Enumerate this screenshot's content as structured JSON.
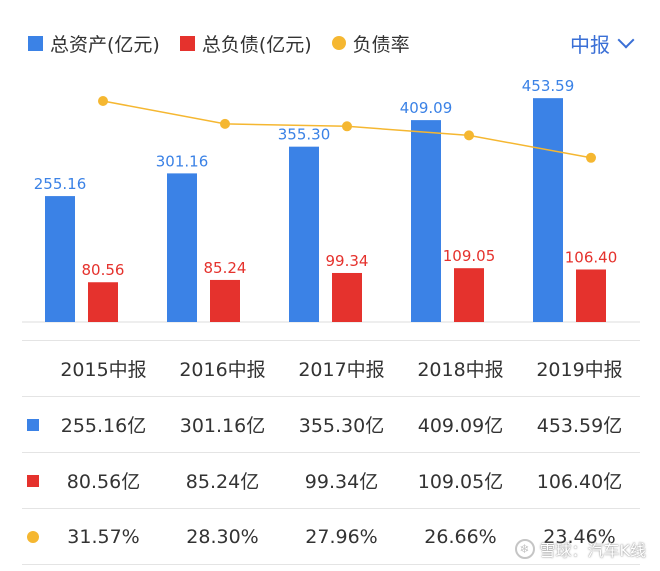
{
  "legend": {
    "assets": "总资产(亿元)",
    "liabilities": "总负债(亿元)",
    "ratio": "负债率"
  },
  "period_selector": {
    "label": "中报"
  },
  "colors": {
    "assets": "#3b82e6",
    "liabilities": "#e5322d",
    "ratio": "#f5b731"
  },
  "chart_data": {
    "type": "bar",
    "categories": [
      "2015中报",
      "2016中报",
      "2017中报",
      "2018中报",
      "2019中报"
    ],
    "series": [
      {
        "name": "总资产(亿元)",
        "values": [
          255.16,
          301.16,
          355.3,
          409.09,
          453.59
        ],
        "labels": [
          "255.16",
          "301.16",
          "355.30",
          "409.09",
          "453.59"
        ]
      },
      {
        "name": "总负债(亿元)",
        "values": [
          80.56,
          85.24,
          99.34,
          109.05,
          106.4
        ],
        "labels": [
          "80.56",
          "85.24",
          "99.34",
          "109.05",
          "106.40"
        ]
      }
    ],
    "line": {
      "name": "负债率",
      "values": [
        31.57,
        28.3,
        27.96,
        26.66,
        23.46
      ]
    },
    "ylim": [
      0,
      500
    ],
    "ratio_ylim": [
      0,
      40
    ]
  },
  "table": {
    "headers": [
      "2015中报",
      "2016中报",
      "2017中报",
      "2018中报",
      "2019中报"
    ],
    "assets_row": [
      "255.16亿",
      "301.16亿",
      "355.30亿",
      "409.09亿",
      "453.59亿"
    ],
    "liabilities_row": [
      "80.56亿",
      "85.24亿",
      "99.34亿",
      "109.05亿",
      "106.40亿"
    ],
    "ratio_row": [
      "31.57%",
      "28.30%",
      "27.96%",
      "26.66%",
      "23.46%"
    ]
  },
  "watermark": {
    "text": "雪球：汽车K线"
  }
}
